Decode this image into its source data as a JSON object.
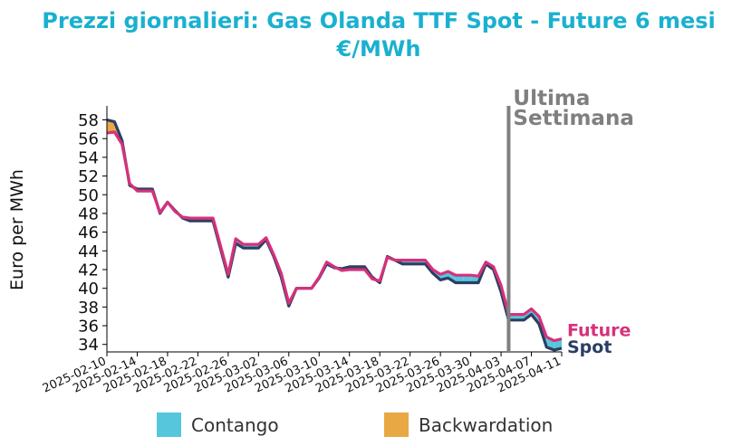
{
  "colors": {
    "title": "#1bb0d0",
    "spot": "#2c3e63",
    "future": "#d6317a",
    "contango": "#56c6dd",
    "backwardation": "#e8a843",
    "marker": "#808080"
  },
  "chart_data": {
    "type": "line",
    "title": "Prezzi giornalieri: Gas Olanda TTF Spot - Future 6 mesi",
    "subtitle": "€/MWh",
    "ylabel": "Euro per MWh",
    "ylim": [
      33.2,
      59.5
    ],
    "yticks": [
      34,
      36,
      38,
      40,
      42,
      44,
      46,
      48,
      50,
      52,
      54,
      56,
      58
    ],
    "xlim": [
      "2025-02-10",
      "2025-04-11"
    ],
    "xticks": [
      "2025-02-10",
      "2025-02-14",
      "2025-02-18",
      "2025-02-22",
      "2025-02-26",
      "2025-03-02",
      "2025-03-06",
      "2025-03-10",
      "2025-03-14",
      "2025-03-18",
      "2025-03-22",
      "2025-03-26",
      "2025-03-30",
      "2025-04-03",
      "2025-04-07",
      "2025-04-11"
    ],
    "x": [
      "2025-02-10",
      "2025-02-11",
      "2025-02-12",
      "2025-02-13",
      "2025-02-14",
      "2025-02-15",
      "2025-02-16",
      "2025-02-17",
      "2025-02-18",
      "2025-02-19",
      "2025-02-20",
      "2025-02-21",
      "2025-02-22",
      "2025-02-23",
      "2025-02-24",
      "2025-02-25",
      "2025-02-26",
      "2025-02-27",
      "2025-02-28",
      "2025-03-01",
      "2025-03-02",
      "2025-03-03",
      "2025-03-04",
      "2025-03-05",
      "2025-03-06",
      "2025-03-07",
      "2025-03-08",
      "2025-03-09",
      "2025-03-10",
      "2025-03-11",
      "2025-03-12",
      "2025-03-13",
      "2025-03-14",
      "2025-03-15",
      "2025-03-16",
      "2025-03-17",
      "2025-03-18",
      "2025-03-19",
      "2025-03-20",
      "2025-03-21",
      "2025-03-22",
      "2025-03-23",
      "2025-03-24",
      "2025-03-25",
      "2025-03-26",
      "2025-03-27",
      "2025-03-28",
      "2025-03-29",
      "2025-03-30",
      "2025-03-31",
      "2025-04-01",
      "2025-04-02",
      "2025-04-03",
      "2025-04-04",
      "2025-04-05",
      "2025-04-06",
      "2025-04-07",
      "2025-04-08",
      "2025-04-09",
      "2025-04-10",
      "2025-04-11"
    ],
    "series": [
      {
        "name": "Spot",
        "values": [
          58.0,
          57.8,
          55.8,
          51.0,
          50.6,
          50.6,
          50.6,
          48.0,
          49.2,
          48.3,
          47.5,
          47.2,
          47.2,
          47.2,
          47.2,
          44.2,
          41.2,
          44.8,
          44.3,
          44.3,
          44.3,
          45.2,
          43.4,
          41.2,
          38.1,
          40.0,
          40.0,
          40.0,
          41.1,
          42.6,
          42.2,
          42.1,
          42.3,
          42.3,
          42.3,
          41.2,
          40.6,
          43.4,
          43.0,
          42.6,
          42.6,
          42.6,
          42.6,
          41.6,
          40.9,
          41.1,
          40.6,
          40.6,
          40.6,
          40.6,
          42.6,
          42.0,
          39.6,
          36.6,
          36.6,
          36.6,
          37.2,
          36.2,
          33.7,
          33.4,
          33.6
        ]
      },
      {
        "name": "Future",
        "values": [
          56.6,
          56.7,
          55.4,
          51.2,
          50.4,
          50.4,
          50.4,
          48.1,
          49.2,
          48.2,
          47.6,
          47.5,
          47.5,
          47.5,
          47.5,
          44.5,
          41.5,
          45.3,
          44.7,
          44.7,
          44.7,
          45.4,
          43.6,
          41.6,
          38.4,
          40.0,
          40.0,
          40.0,
          41.2,
          42.8,
          42.3,
          41.9,
          42.0,
          42.0,
          42.0,
          41.0,
          40.8,
          43.3,
          43.0,
          43.0,
          43.0,
          43.0,
          43.0,
          42.0,
          41.5,
          41.8,
          41.4,
          41.4,
          41.4,
          41.3,
          42.8,
          42.3,
          40.3,
          37.2,
          37.2,
          37.2,
          37.8,
          37.0,
          34.8,
          34.4,
          34.6
        ]
      }
    ],
    "marker": {
      "x": "2025-04-04",
      "label_line1": "Ultima",
      "label_line2": "Settimana"
    },
    "end_labels": {
      "future": "Future",
      "spot": "Spot"
    },
    "legend": {
      "placement": "bottom",
      "items": [
        "Contango",
        "Backwardation"
      ]
    }
  }
}
